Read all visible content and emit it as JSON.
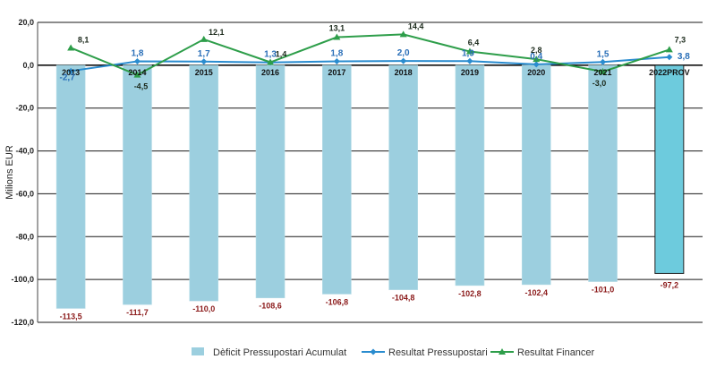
{
  "chart_data": {
    "type": "bar",
    "categories": [
      "2013",
      "2014",
      "2015",
      "2016",
      "2017",
      "2018",
      "2019",
      "2020",
      "2021",
      "2022PROV"
    ],
    "ylabel": "Milions EUR",
    "ylim": [
      -120,
      20
    ],
    "yticks": [
      20,
      0,
      -20,
      -40,
      -60,
      -80,
      -100,
      -120
    ],
    "ytick_labels": [
      "20,0",
      "0,0",
      "-20,0",
      "-40,0",
      "-60,0",
      "-80,0",
      "-100,0",
      "-120,0"
    ],
    "grid": true,
    "legend_position": "bottom",
    "series": [
      {
        "name": "Dèficit Pressupostari Acumulat",
        "kind": "bar",
        "color": "#9ccfdf",
        "highlight_color": "#6dcbdd",
        "values": [
          -113.5,
          -111.7,
          -110.0,
          -108.6,
          -106.8,
          -104.8,
          -102.8,
          -102.4,
          -101.0,
          -97.2
        ],
        "labels": [
          "-113,5",
          "-111,7",
          "-110,0",
          "-108,6",
          "-106,8",
          "-104,8",
          "-102,8",
          "-102,4",
          "-101,0",
          "-97,2"
        ]
      },
      {
        "name": "Resultat Pressupostari",
        "kind": "line",
        "marker": "diamond",
        "color": "#2a8ccf",
        "values": [
          -2.7,
          1.8,
          1.7,
          1.3,
          1.8,
          2.0,
          1.9,
          0.4,
          1.5,
          3.8
        ],
        "labels": [
          "-2,7",
          "1,8",
          "1,7",
          "1,3",
          "1,8",
          "2,0",
          "1,9",
          "0,4",
          "1,5",
          "3,8"
        ]
      },
      {
        "name": "Resultat Financer",
        "kind": "line",
        "marker": "triangle",
        "color": "#2e9e4a",
        "values": [
          8.1,
          -4.5,
          12.1,
          1.4,
          13.1,
          14.4,
          6.4,
          2.8,
          -3.0,
          7.3
        ],
        "labels": [
          "8,1",
          "-4,5",
          "12,1",
          "1,4",
          "13,1",
          "14,4",
          "6,4",
          "2,8",
          "-3,0",
          "7,3"
        ]
      }
    ]
  }
}
